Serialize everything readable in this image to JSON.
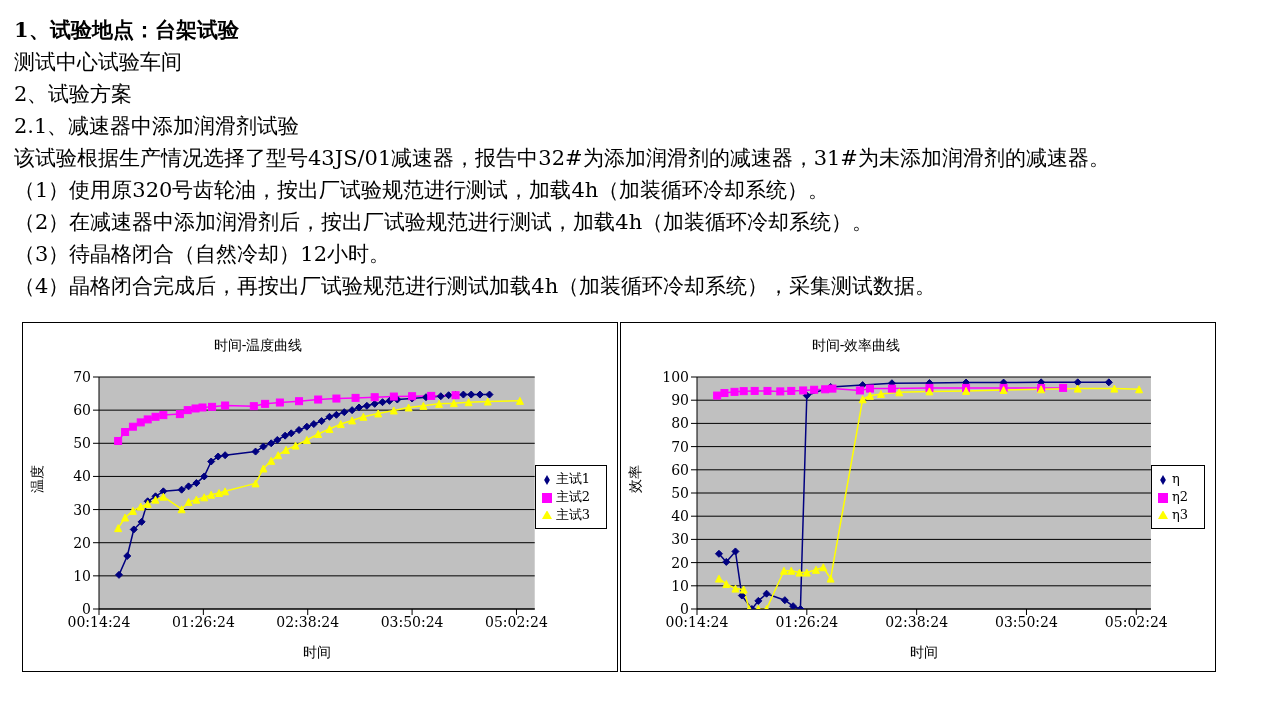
{
  "chart_data": [
    {
      "type": "other",
      "annotations": [
        "1、试验地点：台架试验",
        "测试中心试验车间",
        "2、试验方案",
        "2.1、减速器中添加润滑剂试验",
        "该试验根据生产情况选择了型号43JS/01减速器，报告中32#为添加润滑剂的减速器，31#为未添加润滑剂的减速器。",
        "（1）使用原320号齿轮油，按出厂试验规范进行测试，加载4h（加装循环冷却系统）。",
        "（2）在减速器中添加润滑剂后，按出厂试验规范进行测试，加载4h（加装循环冷却系统）。",
        "（3）待晶格闭合（自然冷却）12小时。",
        "（4）晶格闭合完成后，再按出厂试验规范进行测试加载4h（加装循环冷却系统），采集测试数据。"
      ]
    },
    {
      "type": "line",
      "title": "时间-温度曲线",
      "xlabel": "时间",
      "ylabel": "温度",
      "xlim": [
        0.24,
        5.25
      ],
      "xticks": [
        {
          "value": 0.24,
          "label": "00:14:24"
        },
        {
          "value": 1.44,
          "label": "01:26:24"
        },
        {
          "value": 2.64,
          "label": "02:38:24"
        },
        {
          "value": 3.84,
          "label": "03:50:24"
        },
        {
          "value": 5.04,
          "label": "05:02:24"
        }
      ],
      "ylim": [
        0,
        70
      ],
      "yticks": [
        0,
        10,
        20,
        30,
        40,
        50,
        60,
        70
      ],
      "grid": "y",
      "legend": "right",
      "series": [
        {
          "name": "主试1",
          "color": "#000080",
          "marker": "diamond",
          "x": [
            0.47,
            0.565,
            0.64,
            0.73,
            0.8,
            0.89,
            0.98,
            1.19,
            1.27,
            1.36,
            1.45,
            1.53,
            1.61,
            1.69,
            2.04,
            2.13,
            2.22,
            2.29,
            2.38,
            2.45,
            2.54,
            2.63,
            2.71,
            2.8,
            2.89,
            2.97,
            3.06,
            3.15,
            3.23,
            3.32,
            3.41,
            3.5,
            3.58,
            3.67,
            3.84,
            4.0,
            4.17,
            4.26,
            4.34,
            4.43,
            4.52,
            4.62,
            4.73
          ],
          "values": [
            10.3,
            16,
            24,
            26.3,
            32.5,
            34,
            35.5,
            36,
            37,
            38,
            40,
            44.5,
            46,
            46.4,
            47.5,
            49,
            50,
            51,
            52.3,
            53,
            54,
            55,
            55.8,
            56.7,
            58,
            58.6,
            59.4,
            60,
            60.8,
            61.3,
            61.9,
            62.4,
            62.8,
            63.2,
            63.5,
            63.9,
            64.2,
            64.5,
            64.6,
            64.7,
            64.7,
            64.7,
            64.7
          ]
        },
        {
          "name": "主试2",
          "color": "#ff00ff",
          "marker": "square",
          "x": [
            0.46,
            0.54,
            0.63,
            0.72,
            0.8,
            0.89,
            0.98,
            1.17,
            1.26,
            1.35,
            1.43,
            1.54,
            1.69,
            2.02,
            2.15,
            2.32,
            2.54,
            2.76,
            2.97,
            3.19,
            3.41,
            3.63,
            3.84,
            4.06,
            4.34
          ],
          "values": [
            50.7,
            53.4,
            55,
            56.3,
            57.2,
            58,
            58.5,
            58.8,
            60,
            60.5,
            60.8,
            61,
            61.4,
            61.2,
            61.9,
            62.3,
            62.7,
            63.2,
            63.5,
            63.7,
            63.9,
            64.1,
            64.2,
            64.3,
            64.5
          ]
        },
        {
          "name": "主试3",
          "color": "#ffff00",
          "marker": "triangle",
          "x": [
            0.46,
            0.54,
            0.63,
            0.72,
            0.8,
            0.89,
            0.98,
            1.19,
            1.27,
            1.36,
            1.45,
            1.53,
            1.62,
            1.69,
            2.04,
            2.13,
            2.22,
            2.3,
            2.39,
            2.5,
            2.63,
            2.76,
            2.89,
            3.02,
            3.15,
            3.28,
            3.45,
            3.63,
            3.8,
            3.97,
            4.15,
            4.32,
            4.49,
            4.71,
            5.08
          ],
          "values": [
            24.4,
            27.6,
            29.6,
            30.9,
            31.7,
            33,
            33.9,
            30.1,
            32.3,
            33,
            33.7,
            34.5,
            35,
            35.5,
            37.9,
            42.4,
            44.7,
            46.4,
            48,
            49.3,
            51,
            52.8,
            54.3,
            55.8,
            56.9,
            58,
            59,
            59.9,
            60.8,
            61.3,
            61.9,
            62.1,
            62.4,
            62.6,
            62.8
          ]
        }
      ]
    },
    {
      "type": "line",
      "title": "时间-效率曲线",
      "xlabel": "时间",
      "ylabel": "效率",
      "xlim": [
        0.24,
        5.2
      ],
      "xticks": [
        {
          "value": 0.24,
          "label": "00:14:24"
        },
        {
          "value": 1.44,
          "label": "01:26:24"
        },
        {
          "value": 2.64,
          "label": "02:38:24"
        },
        {
          "value": 3.84,
          "label": "03:50:24"
        },
        {
          "value": 5.04,
          "label": "05:02:24"
        }
      ],
      "ylim": [
        0,
        100
      ],
      "yticks": [
        0,
        10,
        20,
        30,
        40,
        50,
        60,
        70,
        80,
        90,
        100
      ],
      "grid": "y",
      "legend": "right",
      "series": [
        {
          "name": "η",
          "color": "#000080",
          "marker": "diamond",
          "x": [
            0.48,
            0.56,
            0.66,
            0.73,
            0.84,
            0.91,
            1.0,
            1.2,
            1.29,
            1.37,
            1.44,
            1.7,
            2.05,
            2.37,
            2.78,
            3.18,
            3.59,
            4.0,
            4.4,
            4.74
          ],
          "values": [
            23.8,
            20.3,
            24.8,
            5.8,
            0,
            3.5,
            6.6,
            3.8,
            1.2,
            0,
            92,
            95.7,
            96.5,
            97.3,
            97.4,
            97.6,
            97.6,
            97.7,
            97.7,
            97.7
          ]
        },
        {
          "name": "η2",
          "color": "#ff00ff",
          "marker": "square",
          "x": [
            0.46,
            0.54,
            0.65,
            0.75,
            0.87,
            1.01,
            1.15,
            1.27,
            1.4,
            1.52,
            1.64,
            1.72,
            2.02,
            2.13,
            2.37,
            2.78,
            3.18,
            3.59,
            4.0,
            4.24
          ],
          "values": [
            92,
            93.1,
            93.6,
            93.9,
            94,
            94,
            93.8,
            94,
            94.2,
            94.5,
            94.7,
            95,
            94.2,
            95,
            95,
            95.3,
            95.3,
            95.3,
            95.3,
            95.3
          ]
        },
        {
          "name": "η3",
          "color": "#ffff00",
          "marker": "triangle",
          "x": [
            0.48,
            0.56,
            0.66,
            0.75,
            0.81,
            0.91,
            1.0,
            1.19,
            1.27,
            1.36,
            1.44,
            1.54,
            1.62,
            1.7,
            2.05,
            2.13,
            2.25,
            2.45,
            2.78,
            3.18,
            3.59,
            4.0,
            4.4,
            4.8,
            5.07
          ],
          "values": [
            13.1,
            10.8,
            8.8,
            8.4,
            0,
            0,
            0,
            16.5,
            16.5,
            15.7,
            15.7,
            16.9,
            18,
            13.1,
            90.4,
            91.9,
            92.7,
            93.4,
            93.8,
            94,
            94.4,
            94.7,
            95,
            95,
            94.7
          ]
        }
      ]
    }
  ]
}
